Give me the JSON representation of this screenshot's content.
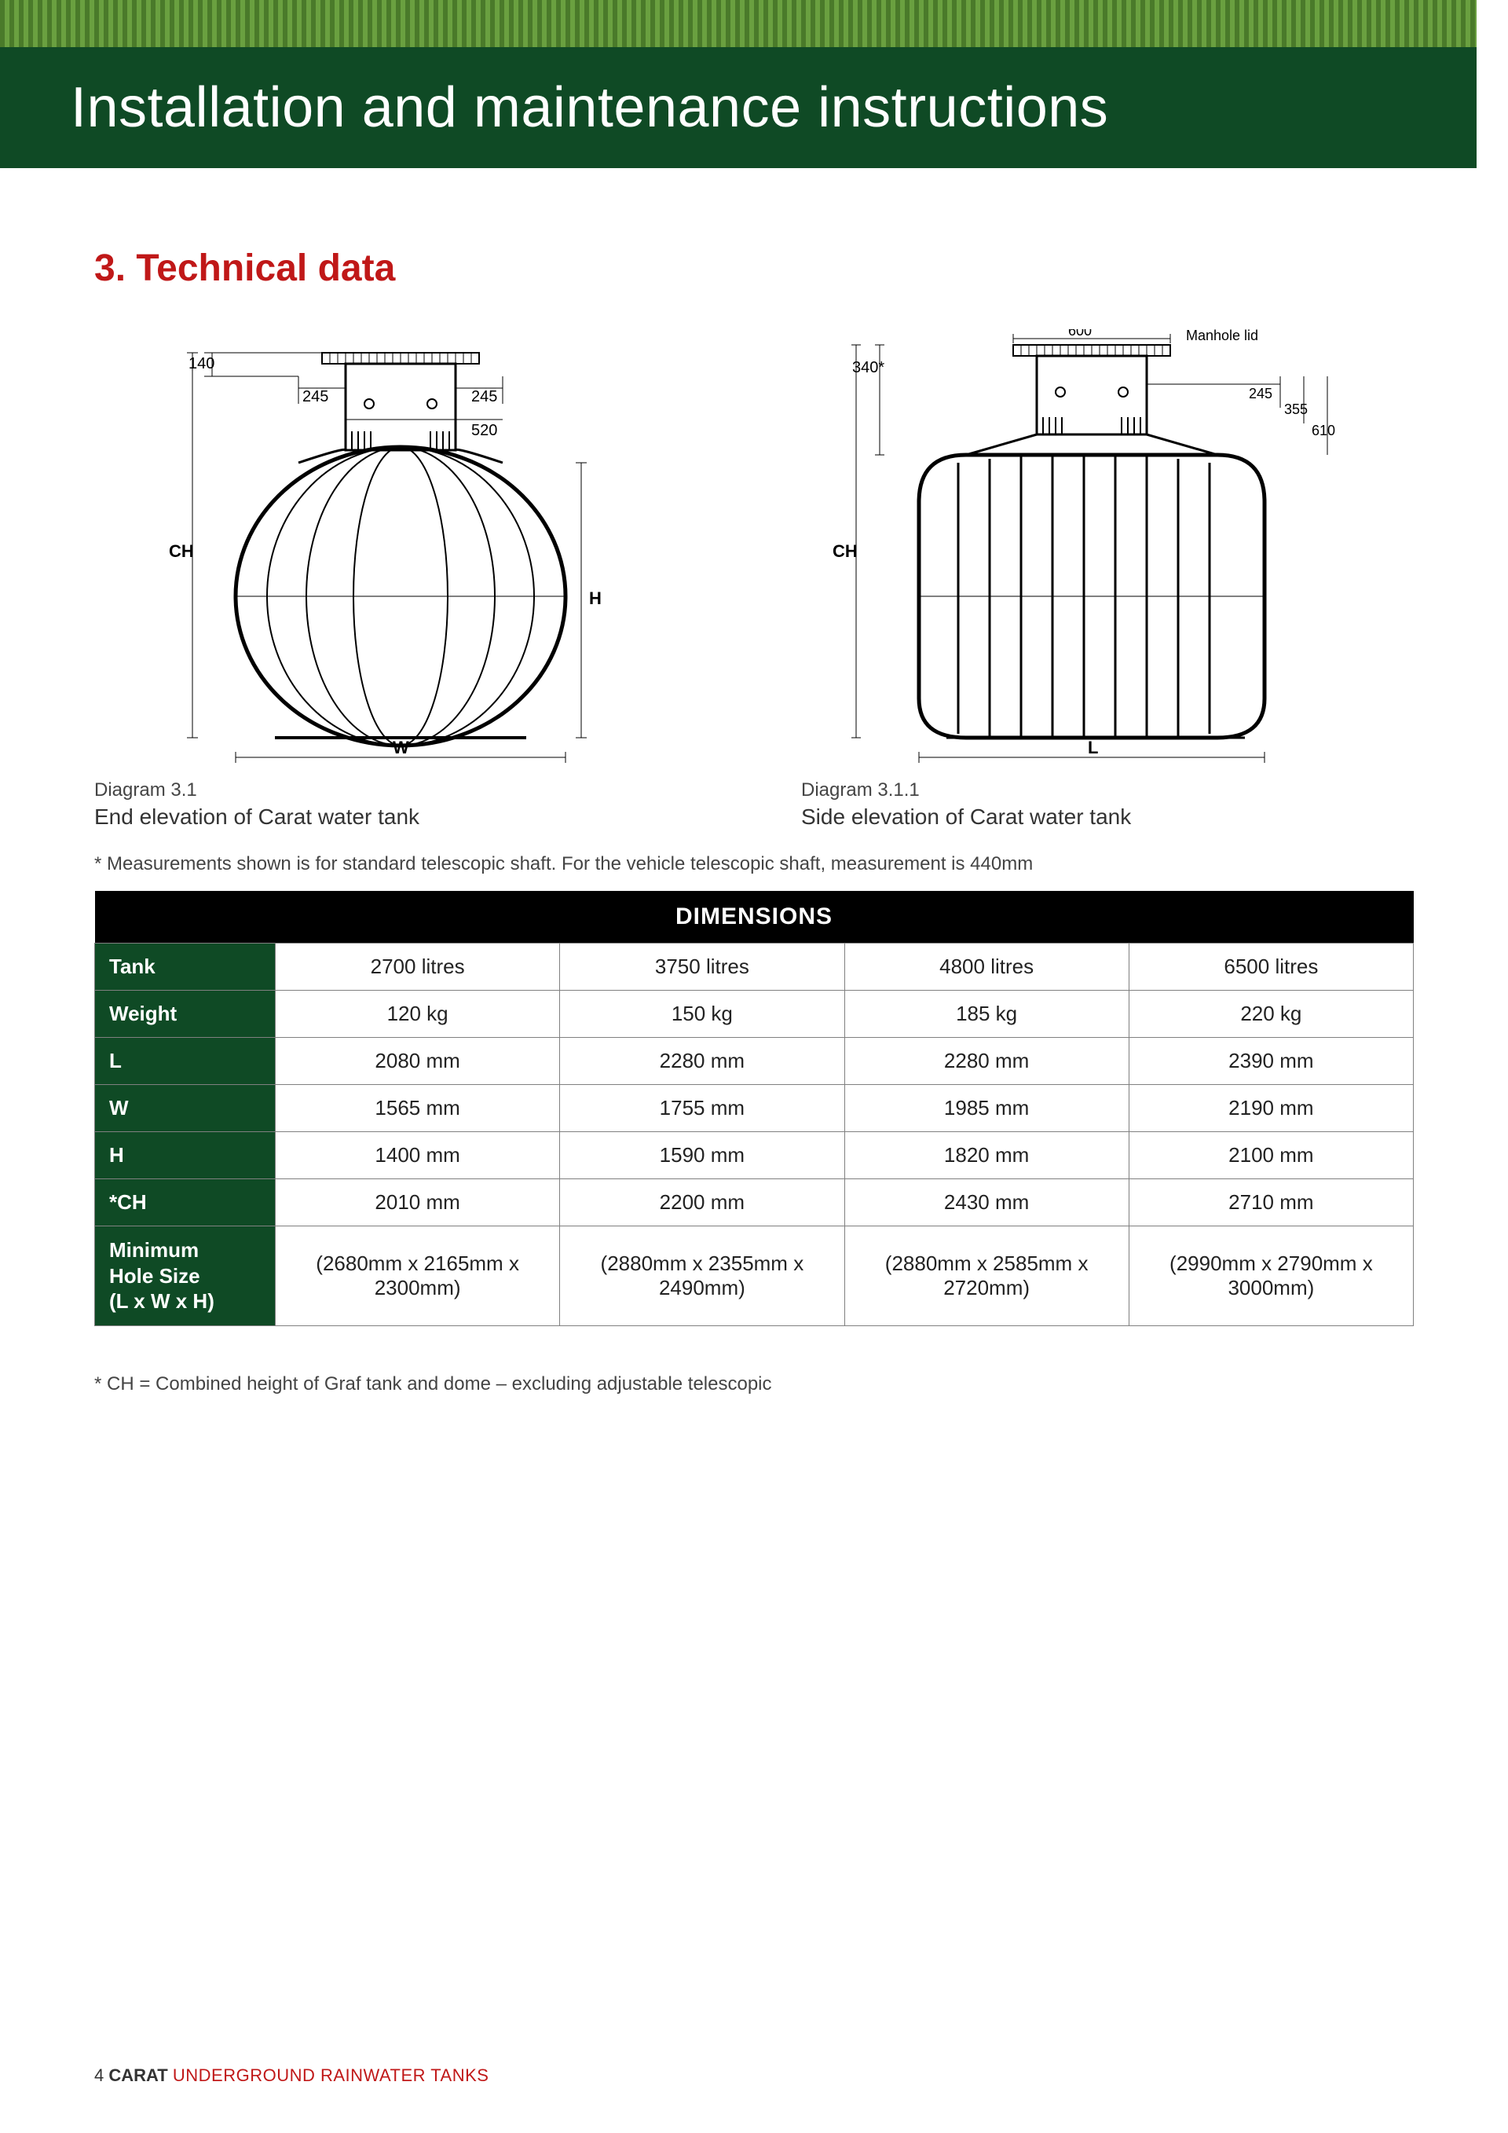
{
  "header": {
    "title": "Installation and maintenance instructions"
  },
  "section": {
    "number": "3.",
    "title": "Technical data"
  },
  "colors": {
    "header_bg": "#0f4a25",
    "accent_red": "#c01818",
    "barcode_a": "#4a7a2a",
    "barcode_b": "#6aa040",
    "table_title_bg": "#000000",
    "table_rowhdr_bg": "#0f4a25",
    "border": "#808080",
    "text": "#333333"
  },
  "diagrams": {
    "left": {
      "label": "Diagram 3.1",
      "caption": "End elevation of Carat water tank",
      "dims": {
        "top_140": "140",
        "left_245": "245",
        "right_245": "245",
        "neck_520": "520",
        "CH": "CH",
        "H": "H",
        "W": "W"
      }
    },
    "right": {
      "label": "Diagram 3.1.1",
      "caption": "Side elevation of Carat water tank",
      "dims": {
        "lid_600": "600",
        "lid_label": "Manhole lid",
        "top_340": "340*",
        "r_245": "245",
        "r_355": "355",
        "r_610": "610",
        "CH": "CH",
        "L": "L"
      }
    }
  },
  "footnote": "* Measurements shown is for standard telescopic shaft. For the vehicle telescopic shaft, measurement is 440mm",
  "table": {
    "title": "DIMENSIONS",
    "rows": [
      {
        "hdr": "Tank",
        "cells": [
          "2700 litres",
          "3750 litres",
          "4800 litres",
          "6500 litres"
        ]
      },
      {
        "hdr": "Weight",
        "cells": [
          "120 kg",
          "150 kg",
          "185 kg",
          "220 kg"
        ]
      },
      {
        "hdr": "L",
        "cells": [
          "2080 mm",
          "2280 mm",
          "2280 mm",
          "2390 mm"
        ]
      },
      {
        "hdr": "W",
        "cells": [
          "1565 mm",
          "1755 mm",
          "1985 mm",
          "2190 mm"
        ]
      },
      {
        "hdr": "H",
        "cells": [
          "1400 mm",
          "1590 mm",
          "1820 mm",
          "2100 mm"
        ]
      },
      {
        "hdr": "*CH",
        "cells": [
          "2010 mm",
          "2200 mm",
          "2430 mm",
          "2710 mm"
        ]
      },
      {
        "hdr": "Minimum\nHole Size\n(L x W x H)",
        "cells": [
          "(2680mm x 2165mm x 2300mm)",
          "(2880mm x 2355mm x 2490mm)",
          "(2880mm x 2585mm x 2720mm)",
          "(2990mm x 2790mm x 3000mm)"
        ]
      }
    ]
  },
  "note": "* CH = Combined height of Graf tank and dome – excluding adjustable telescopic",
  "footer": {
    "page": "4",
    "brand": "CARAT",
    "product": "UNDERGROUND RAINWATER TANKS"
  }
}
